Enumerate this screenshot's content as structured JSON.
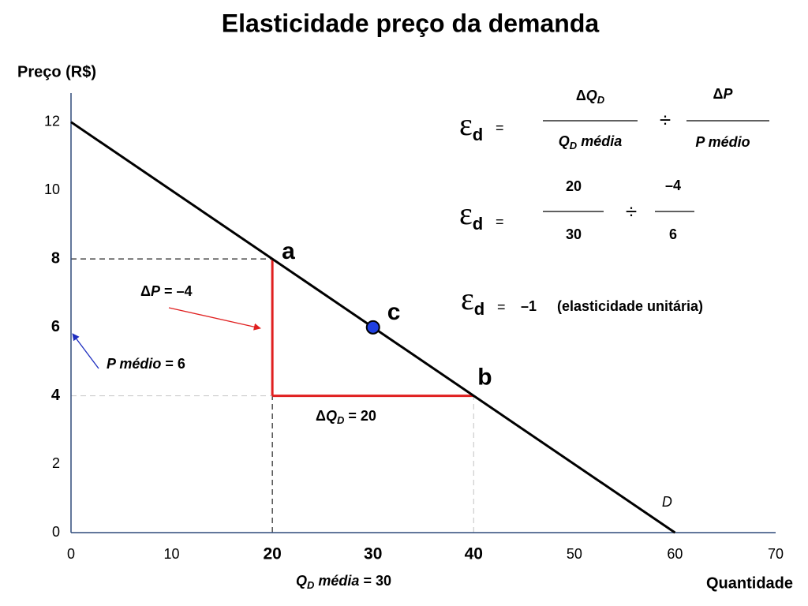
{
  "chart_data": {
    "type": "line",
    "title": "Elasticidade preço da demanda",
    "y_label": "Preço (R$)",
    "x_label": "Quantidade",
    "xlim": [
      0,
      70
    ],
    "ylim": [
      0,
      12.8
    ],
    "xticks": [
      0,
      10,
      20,
      30,
      40,
      50,
      60,
      70
    ],
    "yticks": [
      0,
      2,
      4,
      6,
      8,
      10,
      12
    ],
    "axis_color": "#2f4a7a",
    "series": [
      {
        "name": "D",
        "color": "#000000",
        "x": [
          0,
          60
        ],
        "values": [
          12,
          0
        ]
      }
    ],
    "points": [
      {
        "label": "a",
        "x": 20,
        "y": 8
      },
      {
        "label": "b",
        "x": 40,
        "y": 4
      },
      {
        "label": "c",
        "x": 30,
        "y": 6,
        "color": "#1f3fe0"
      }
    ],
    "change_color": "#e02020",
    "annotations": {
      "delta_p": [
        "Δ",
        "P",
        " = –4"
      ],
      "p_medio": [
        "P médio",
        " = 6"
      ],
      "delta_q": [
        "Δ",
        "Q",
        "D",
        " = 20"
      ],
      "q_media": [
        "Q",
        "D",
        " média",
        " = 30"
      ]
    }
  },
  "formulas": {
    "symbol": "ε",
    "subscript": "d",
    "equals": "=",
    "divide": "÷",
    "general": {
      "num1": [
        "Δ",
        "Q",
        "D"
      ],
      "den1": [
        "Q",
        "D",
        " média"
      ],
      "num2": [
        "Δ",
        "P"
      ],
      "den2": "P médio"
    },
    "numeric": {
      "num1": "20",
      "den1": "30",
      "num2": "–4",
      "den2": "6"
    },
    "result": {
      "value": "–1",
      "note": "(elasticidade unitária)"
    }
  }
}
